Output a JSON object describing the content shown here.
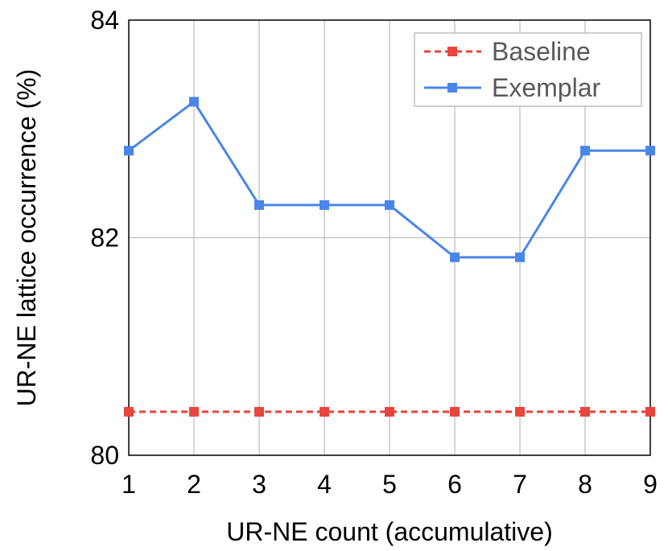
{
  "chart_data": {
    "type": "line",
    "xlabel": "UR-NE count (accumulative)",
    "ylabel": "UR-NE lattice occurrence (%)",
    "x": [
      1,
      2,
      3,
      4,
      5,
      6,
      7,
      8,
      9
    ],
    "xlim": [
      1,
      9
    ],
    "ylim": [
      80,
      84
    ],
    "yticks": [
      80,
      82,
      84
    ],
    "grid": true,
    "legend_position": "top-right",
    "series": [
      {
        "name": "Baseline",
        "color": "#e8453c",
        "line_style": "dashed",
        "marker": "square",
        "values": [
          80.4,
          80.4,
          80.4,
          80.4,
          80.4,
          80.4,
          80.4,
          80.4,
          80.4
        ]
      },
      {
        "name": "Exemplar",
        "color": "#4a86e8",
        "line_style": "solid",
        "marker": "square",
        "values": [
          82.8,
          83.25,
          82.3,
          82.3,
          82.3,
          81.82,
          81.82,
          82.8,
          82.8
        ]
      }
    ]
  }
}
